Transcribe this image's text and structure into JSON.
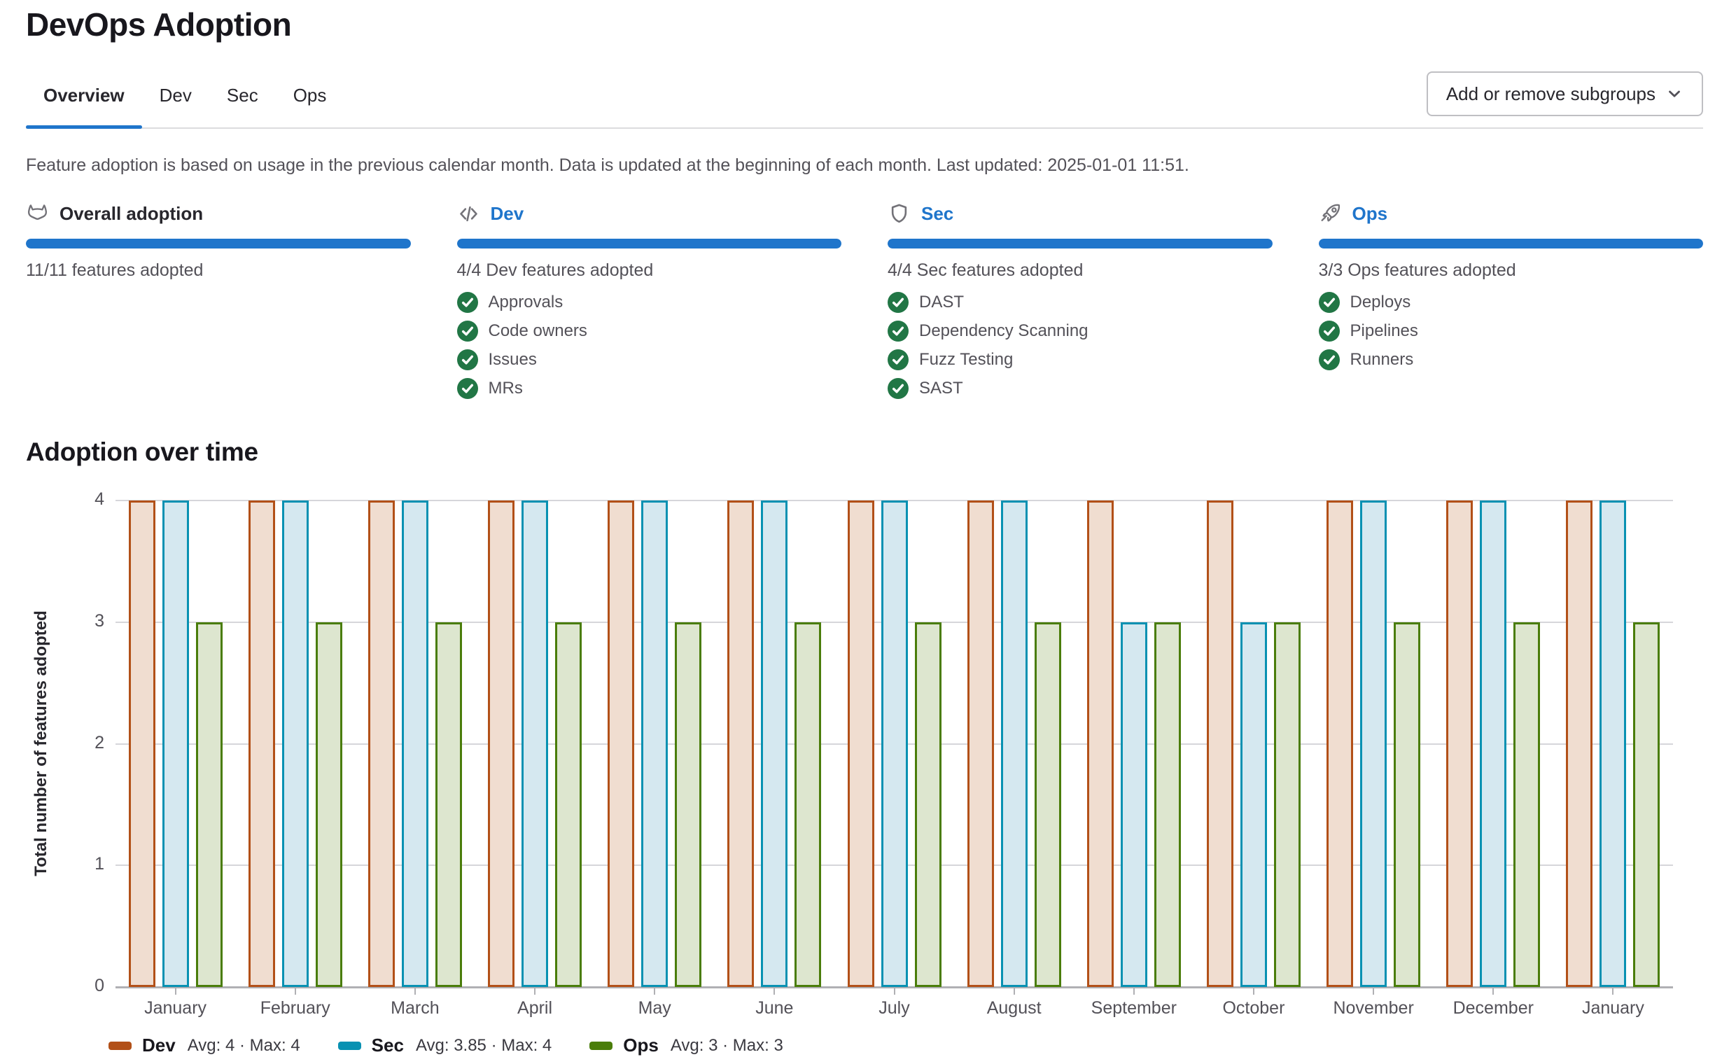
{
  "page": {
    "title": "DevOps Adoption"
  },
  "tabs": [
    {
      "label": "Overview",
      "active": true
    },
    {
      "label": "Dev",
      "active": false
    },
    {
      "label": "Sec",
      "active": false
    },
    {
      "label": "Ops",
      "active": false
    }
  ],
  "toolbar": {
    "add_remove_label": "Add or remove subgroups"
  },
  "info_text": "Feature adoption is based on usage in the previous calendar month. Data is updated at the beginning of each month. Last updated: 2025-01-01 11:51.",
  "cards": [
    {
      "title": "Overall adoption",
      "icon": "tanuki-icon",
      "link": false,
      "progress": 100,
      "count_text": "11/11 features adopted",
      "features": []
    },
    {
      "title": "Dev",
      "icon": "code-icon",
      "link": true,
      "progress": 100,
      "count_text": "4/4 Dev features adopted",
      "features": [
        "Approvals",
        "Code owners",
        "Issues",
        "MRs"
      ]
    },
    {
      "title": "Sec",
      "icon": "shield-icon",
      "link": true,
      "progress": 100,
      "count_text": "4/4 Sec features adopted",
      "features": [
        "DAST",
        "Dependency Scanning",
        "Fuzz Testing",
        "SAST"
      ]
    },
    {
      "title": "Ops",
      "icon": "rocket-icon",
      "link": true,
      "progress": 100,
      "count_text": "3/3 Ops features adopted",
      "features": [
        "Deploys",
        "Pipelines",
        "Runners"
      ]
    }
  ],
  "section_title": "Adoption over time",
  "chart_data": {
    "type": "bar",
    "title": "Adoption over time",
    "xlabel": "",
    "ylabel": "Total number of features adopted",
    "ylim": [
      0,
      4
    ],
    "yticks": [
      0,
      1,
      2,
      3,
      4
    ],
    "grid": true,
    "legend_position": "bottom",
    "categories": [
      "January",
      "February",
      "March",
      "April",
      "May",
      "June",
      "July",
      "August",
      "September",
      "October",
      "November",
      "December",
      "January"
    ],
    "series": [
      {
        "name": "Dev",
        "values": [
          4,
          4,
          4,
          4,
          4,
          4,
          4,
          4,
          4,
          4,
          4,
          4,
          4
        ],
        "border_color": "#b25018",
        "fill_color": "#f0ddd0",
        "legend_stats": "Avg: 4 · Max: 4"
      },
      {
        "name": "Sec",
        "values": [
          4,
          4,
          4,
          4,
          4,
          4,
          4,
          4,
          3,
          3,
          4,
          4,
          4
        ],
        "border_color": "#0891b2",
        "fill_color": "#d5e8f0",
        "legend_stats": "Avg: 3.85 · Max: 4"
      },
      {
        "name": "Ops",
        "values": [
          3,
          3,
          3,
          3,
          3,
          3,
          3,
          3,
          3,
          3,
          3,
          3,
          3
        ],
        "border_color": "#4a7d0a",
        "fill_color": "#dde6cf",
        "legend_stats": "Avg: 3 · Max: 3"
      }
    ]
  },
  "colors": {
    "accent_blue": "#1f75cb",
    "check_green": "#217645",
    "gridline_gray": "#d6d6da",
    "axis_gray": "#b0b0b4"
  }
}
